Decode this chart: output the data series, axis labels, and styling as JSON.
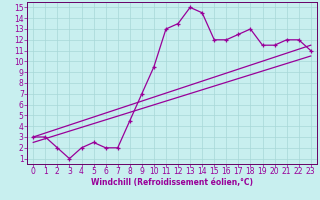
{
  "xlabel": "Windchill (Refroidissement éolien,°C)",
  "bg_color": "#c8efef",
  "grid_color": "#a8d8d8",
  "line_color": "#990099",
  "spine_color": "#660066",
  "xlim": [
    -0.5,
    23.5
  ],
  "ylim": [
    0.5,
    15.5
  ],
  "xticks": [
    0,
    1,
    2,
    3,
    4,
    5,
    6,
    7,
    8,
    9,
    10,
    11,
    12,
    13,
    14,
    15,
    16,
    17,
    18,
    19,
    20,
    21,
    22,
    23
  ],
  "yticks": [
    1,
    2,
    3,
    4,
    5,
    6,
    7,
    8,
    9,
    10,
    11,
    12,
    13,
    14,
    15
  ],
  "line1_x": [
    0,
    1,
    2,
    3,
    4,
    5,
    6,
    7,
    8,
    9,
    10,
    11,
    12,
    13,
    14,
    15,
    16,
    17,
    18,
    19,
    20,
    21,
    22,
    23
  ],
  "line1_y": [
    3,
    3,
    2,
    1,
    2,
    2.5,
    2,
    2,
    4.5,
    7,
    9.5,
    13,
    13.5,
    15,
    14.5,
    12,
    12,
    12.5,
    13,
    11.5,
    11.5,
    12,
    12,
    11
  ],
  "line2_x": [
    0,
    23
  ],
  "line2_y": [
    3.0,
    11.5
  ],
  "line3_x": [
    0,
    23
  ],
  "line3_y": [
    2.5,
    10.5
  ],
  "tick_fontsize": 5.5,
  "xlabel_fontsize": 5.5
}
